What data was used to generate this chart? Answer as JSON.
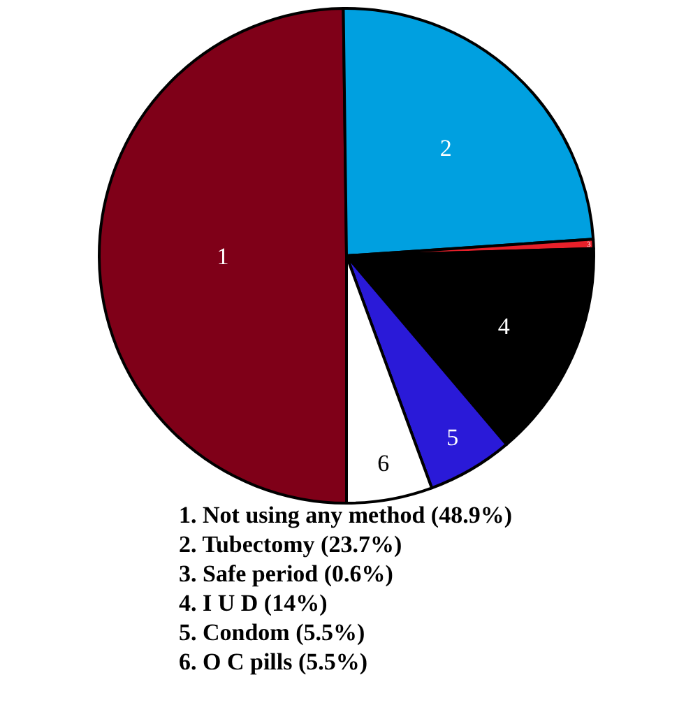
{
  "chart_data": {
    "type": "pie",
    "categories": [
      "1",
      "2",
      "3",
      "4",
      "5",
      "6"
    ],
    "values": [
      48.9,
      23.7,
      0.6,
      14,
      5.5,
      5.5
    ],
    "colors": [
      "#7f0018",
      "#00a0e0",
      "#e8202a",
      "#000000",
      "#2a1ad8",
      "#ffffff"
    ],
    "annotations": [
      "1. Not using any method (48.9%)",
      "2. Tubectomy (23.7%)",
      "3. Safe period (0.6%)",
      "4. I U D (14%)",
      "5. Condom (5.5%)",
      "6. O C pills (5.5%)"
    ]
  }
}
